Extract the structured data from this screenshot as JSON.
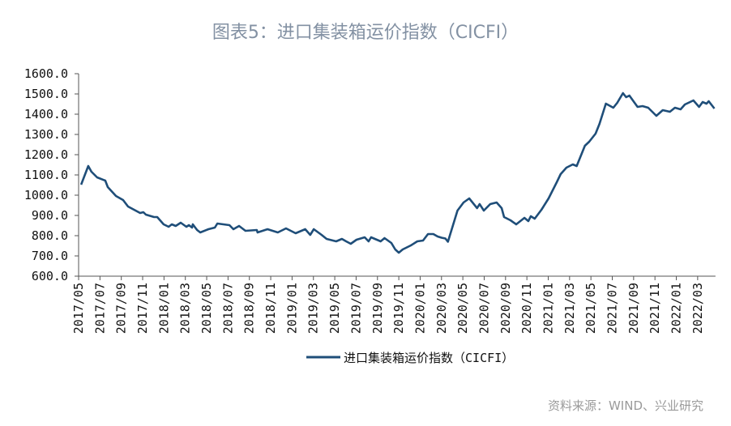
{
  "title": "图表5：进口集装箱运价指数（CICFI）",
  "source": "资料来源：WIND、兴业研究",
  "chart_data": {
    "type": "line",
    "title": "图表5：进口集装箱运价指数（CICFI）",
    "xlabel": "",
    "ylabel": "",
    "ylim": [
      600,
      1600
    ],
    "y_ticks": [
      "1600.0",
      "1500.0",
      "1400.0",
      "1300.0",
      "1200.0",
      "1100.0",
      "1000.0",
      "900.0",
      "800.0",
      "700.0",
      "600.0"
    ],
    "x_ticks": [
      "2017/05",
      "2017/07",
      "2017/09",
      "2017/11",
      "2018/01",
      "2018/03",
      "2018/05",
      "2018/07",
      "2018/09",
      "2018/11",
      "2019/01",
      "2019/03",
      "2019/05",
      "2019/07",
      "2019/09",
      "2019/11",
      "2020/01",
      "2020/03",
      "2020/05",
      "2020/07",
      "2020/09",
      "2020/11",
      "2021/01",
      "2021/03",
      "2021/05",
      "2021/07",
      "2021/09",
      "2021/11",
      "2022/01",
      "2022/03"
    ],
    "grid": false,
    "legend_position": "bottom",
    "line_color": "#1f4e79",
    "series": [
      {
        "name": "进口集装箱运价指数（CICFI）",
        "points": [
          [
            "2017-05-08",
            1052
          ],
          [
            "2017-05-28",
            1144
          ],
          [
            "2017-06-07",
            1116
          ],
          [
            "2017-06-23",
            1088
          ],
          [
            "2017-07-16",
            1072
          ],
          [
            "2017-07-23",
            1040
          ],
          [
            "2017-08-16",
            996
          ],
          [
            "2017-09-06",
            976
          ],
          [
            "2017-09-20",
            944
          ],
          [
            "2017-10-24",
            912
          ],
          [
            "2017-11-03",
            916
          ],
          [
            "2017-11-10",
            904
          ],
          [
            "2017-12-03",
            892
          ],
          [
            "2017-12-12",
            892
          ],
          [
            "2017-12-30",
            856
          ],
          [
            "2018-01-14",
            844
          ],
          [
            "2018-01-23",
            856
          ],
          [
            "2018-02-04",
            848
          ],
          [
            "2018-02-18",
            864
          ],
          [
            "2018-03-04",
            844
          ],
          [
            "2018-03-11",
            852
          ],
          [
            "2018-03-20",
            840
          ],
          [
            "2018-03-22",
            856
          ],
          [
            "2018-04-04",
            828
          ],
          [
            "2018-04-13",
            816
          ],
          [
            "2018-05-06",
            832
          ],
          [
            "2018-05-24",
            840
          ],
          [
            "2018-05-31",
            860
          ],
          [
            "2018-07-05",
            852
          ],
          [
            "2018-07-16",
            832
          ],
          [
            "2018-08-02",
            848
          ],
          [
            "2018-08-20",
            824
          ],
          [
            "2018-09-22",
            828
          ],
          [
            "2018-09-24",
            816
          ],
          [
            "2018-10-22",
            832
          ],
          [
            "2018-11-21",
            816
          ],
          [
            "2018-12-14",
            836
          ],
          [
            "2019-01-11",
            812
          ],
          [
            "2019-02-08",
            832
          ],
          [
            "2019-02-22",
            804
          ],
          [
            "2019-03-02",
            832
          ],
          [
            "2019-03-24",
            804
          ],
          [
            "2019-04-08",
            784
          ],
          [
            "2019-05-05",
            772
          ],
          [
            "2019-05-21",
            784
          ],
          [
            "2019-06-03",
            772
          ],
          [
            "2019-06-16",
            760
          ],
          [
            "2019-07-02",
            780
          ],
          [
            "2019-07-25",
            792
          ],
          [
            "2019-08-06",
            772
          ],
          [
            "2019-08-13",
            792
          ],
          [
            "2019-09-10",
            772
          ],
          [
            "2019-09-21",
            788
          ],
          [
            "2019-10-10",
            764
          ],
          [
            "2019-10-21",
            732
          ],
          [
            "2019-10-31",
            716
          ],
          [
            "2019-11-12",
            732
          ],
          [
            "2019-12-05",
            752
          ],
          [
            "2019-12-23",
            772
          ],
          [
            "2020-01-09",
            776
          ],
          [
            "2020-01-23",
            808
          ],
          [
            "2020-02-08",
            808
          ],
          [
            "2020-02-20",
            796
          ],
          [
            "2020-03-01",
            790
          ],
          [
            "2020-03-12",
            786
          ],
          [
            "2020-03-19",
            770
          ],
          [
            "2020-04-16",
            924
          ],
          [
            "2020-05-03",
            964
          ],
          [
            "2020-05-19",
            984
          ],
          [
            "2020-06-11",
            936
          ],
          [
            "2020-06-18",
            956
          ],
          [
            "2020-06-30",
            924
          ],
          [
            "2020-07-18",
            956
          ],
          [
            "2020-08-06",
            964
          ],
          [
            "2020-08-20",
            936
          ],
          [
            "2020-08-27",
            892
          ],
          [
            "2020-09-15",
            876
          ],
          [
            "2020-10-01",
            856
          ],
          [
            "2020-10-24",
            888
          ],
          [
            "2020-11-05",
            872
          ],
          [
            "2020-11-12",
            896
          ],
          [
            "2020-11-23",
            884
          ],
          [
            "2020-12-12",
            928
          ],
          [
            "2021-01-02",
            984
          ],
          [
            "2021-01-25",
            1064
          ],
          [
            "2021-02-06",
            1104
          ],
          [
            "2021-02-22",
            1136
          ],
          [
            "2021-03-10",
            1152
          ],
          [
            "2021-03-21",
            1144
          ],
          [
            "2021-04-14",
            1244
          ],
          [
            "2021-04-26",
            1264
          ],
          [
            "2021-05-14",
            1304
          ],
          [
            "2021-05-25",
            1352
          ],
          [
            "2021-06-13",
            1452
          ],
          [
            "2021-07-04",
            1432
          ],
          [
            "2021-07-15",
            1456
          ],
          [
            "2021-08-01",
            1504
          ],
          [
            "2021-08-10",
            1484
          ],
          [
            "2021-08-19",
            1492
          ],
          [
            "2021-09-12",
            1436
          ],
          [
            "2021-09-26",
            1440
          ],
          [
            "2021-10-12",
            1432
          ],
          [
            "2021-11-05",
            1392
          ],
          [
            "2021-11-23",
            1420
          ],
          [
            "2021-12-13",
            1412
          ],
          [
            "2021-12-27",
            1432
          ],
          [
            "2022-01-13",
            1424
          ],
          [
            "2022-01-25",
            1448
          ],
          [
            "2022-02-19",
            1468
          ],
          [
            "2022-03-05",
            1436
          ],
          [
            "2022-03-15",
            1460
          ],
          [
            "2022-03-26",
            1452
          ],
          [
            "2022-04-02",
            1464
          ],
          [
            "2022-04-18",
            1428
          ]
        ]
      }
    ]
  }
}
